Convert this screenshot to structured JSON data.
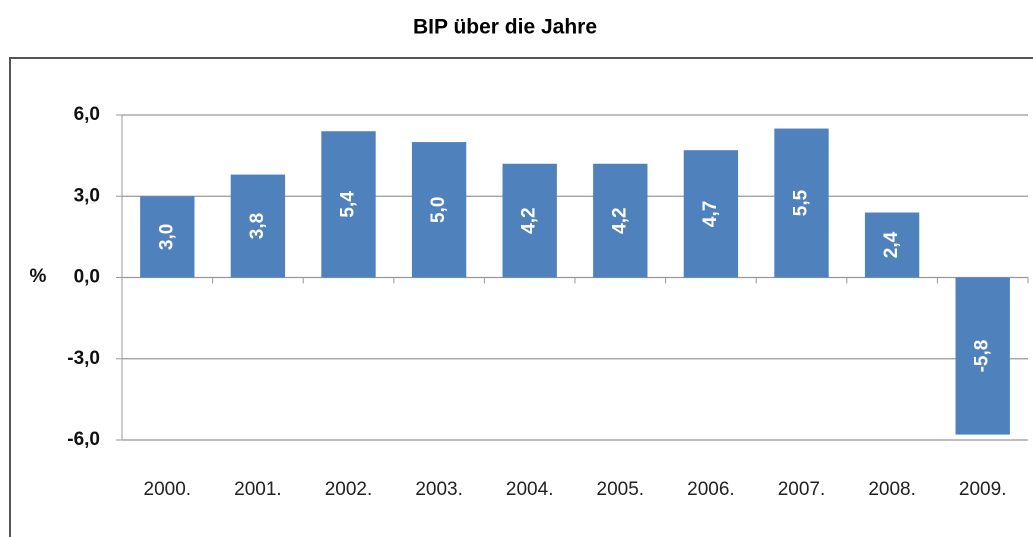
{
  "chart_data": {
    "type": "bar",
    "title": "BIP über die Jahre",
    "ylabel": "%",
    "categories": [
      "2000.",
      "2001.",
      "2002.",
      "2003.",
      "2004.",
      "2005.",
      "2006.",
      "2007.",
      "2008.",
      "2009."
    ],
    "values": [
      3.0,
      3.8,
      5.4,
      5.0,
      4.2,
      4.2,
      4.7,
      5.5,
      2.4,
      -5.8
    ],
    "value_labels": [
      "3,0",
      "3,8",
      "5,4",
      "5,0",
      "4,2",
      "4,2",
      "4,7",
      "5,5",
      "2,4",
      "-5,8"
    ],
    "color": "#4f81bd",
    "ylim": [
      -6,
      6
    ],
    "yticks": [
      {
        "value": 6,
        "label": "6,0"
      },
      {
        "value": 3,
        "label": "3,0"
      },
      {
        "value": 0,
        "label": "0,0"
      },
      {
        "value": -3,
        "label": "-3,0"
      },
      {
        "value": -6,
        "label": "-6,0"
      }
    ],
    "grid": true
  }
}
